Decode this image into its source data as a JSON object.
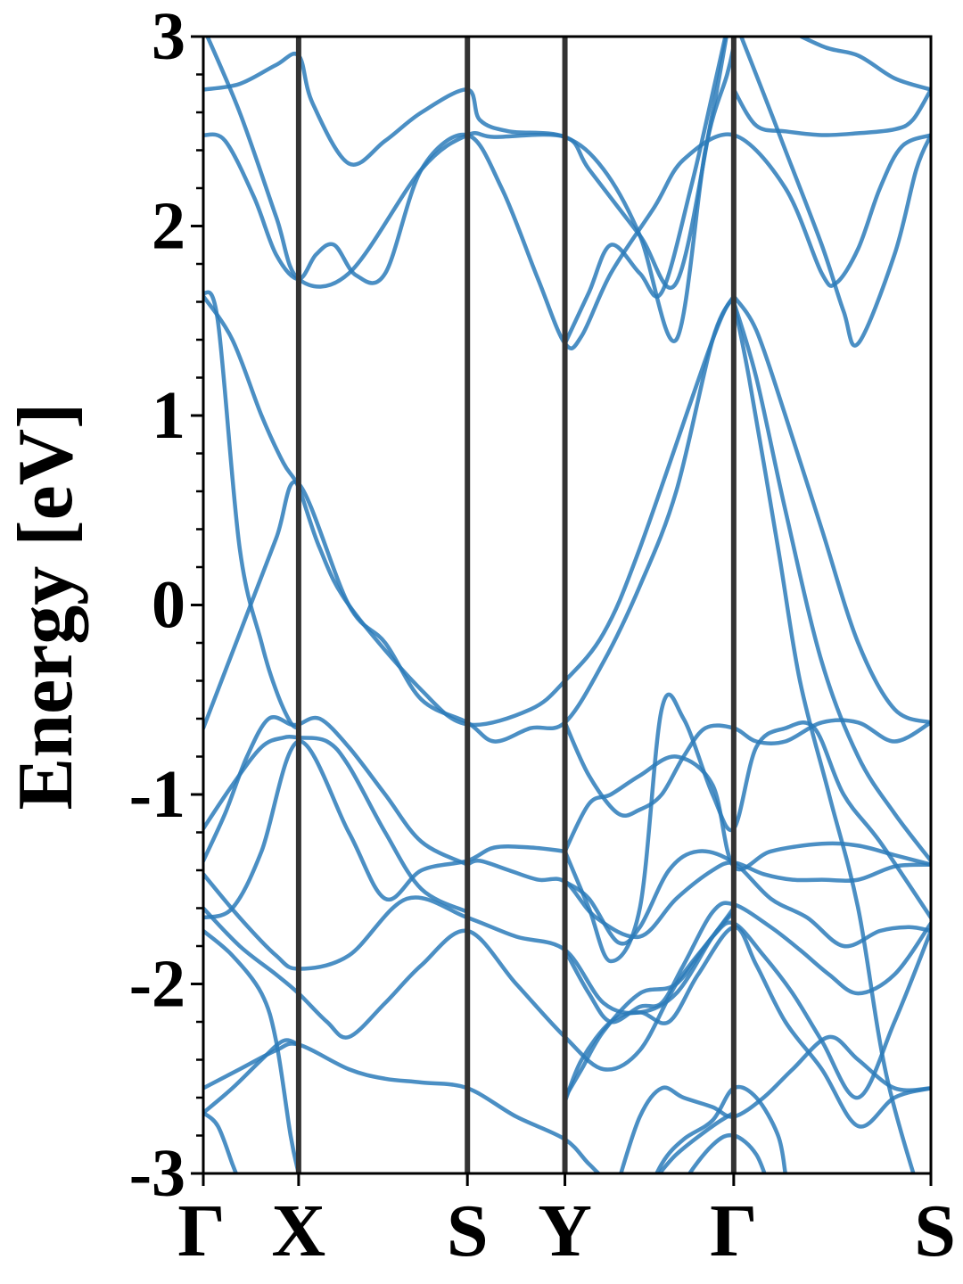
{
  "chart_data": {
    "type": "line",
    "title": "",
    "ylabel": "Energy [eV]",
    "xlabel": "",
    "ylim": [
      -3,
      3
    ],
    "yticks": [
      {
        "value": 3,
        "label": "3"
      },
      {
        "value": 2,
        "label": "2"
      },
      {
        "value": 1,
        "label": "1"
      },
      {
        "value": 0,
        "label": "0"
      },
      {
        "value": -1,
        "label": "-1"
      },
      {
        "value": -2,
        "label": "-2"
      },
      {
        "value": -3,
        "label": "-3"
      }
    ],
    "k_path": [
      {
        "label": "Γ",
        "k": 0.0
      },
      {
        "label": "X",
        "k": 0.131
      },
      {
        "label": "S",
        "k": 0.363
      },
      {
        "label": "Y",
        "k": 0.497
      },
      {
        "label": "Γ",
        "k": 0.729
      },
      {
        "label": "S",
        "k": 1.0
      }
    ],
    "xlim": [
      0,
      1
    ],
    "grid": false,
    "legend": "none",
    "colors": {
      "bands": "#2b7bba",
      "k_lines": "#333333",
      "axes": "#000000"
    },
    "series": [
      {
        "x": [
          0,
          0.05,
          0.1,
          0.131,
          0.2,
          0.3,
          0.363,
          0.4,
          0.497,
          0.53,
          0.6,
          0.65,
          0.7,
          0.729,
          0.74,
          0.755
        ],
        "values": [
          3.05,
          2.6,
          2.05,
          1.72,
          1.75,
          2.3,
          2.48,
          2.47,
          2.47,
          2.3,
          1.95,
          1.7,
          2.6,
          3.2,
          3.2,
          3.2
        ]
      },
      {
        "x": [
          0,
          0.05,
          0.1,
          0.131,
          0.15,
          0.2,
          0.25,
          0.3,
          0.363,
          0.38,
          0.42,
          0.497,
          0.55,
          0.6,
          0.65,
          0.69,
          0.72,
          0.729
        ],
        "values": [
          2.72,
          2.75,
          2.85,
          2.9,
          2.65,
          2.33,
          2.45,
          2.6,
          2.72,
          2.56,
          2.5,
          2.47,
          2.3,
          1.95,
          1.4,
          2.4,
          2.8,
          2.95
        ]
      },
      {
        "x": [
          0,
          0.03,
          0.07,
          0.1,
          0.131,
          0.155,
          0.18,
          0.21,
          0.25,
          0.3,
          0.363,
          0.41,
          0.46,
          0.497,
          0.52,
          0.56,
          0.62,
          0.66,
          0.729,
          0.8,
          0.85,
          0.87,
          0.9,
          0.93,
          0.96,
          1.0
        ],
        "values": [
          2.48,
          2.45,
          2.15,
          1.85,
          1.72,
          1.85,
          1.9,
          1.74,
          1.75,
          2.3,
          2.48,
          2.2,
          1.72,
          1.38,
          1.42,
          1.75,
          2.1,
          2.35,
          2.48,
          2.2,
          1.75,
          1.7,
          1.88,
          2.2,
          2.42,
          2.48
        ]
      },
      {
        "x": [
          0.729,
          0.76,
          0.8,
          0.85,
          0.9,
          0.95,
          0.975,
          1.0
        ],
        "values": [
          2.72,
          2.53,
          2.5,
          2.48,
          2.49,
          2.51,
          2.56,
          2.72
        ]
      },
      {
        "x": [
          0.729,
          0.77,
          0.8,
          0.85,
          0.88,
          0.9,
          0.95,
          0.98,
          1.0
        ],
        "values": [
          3.1,
          2.7,
          2.4,
          1.9,
          1.55,
          1.38,
          1.85,
          2.3,
          2.48
        ]
      },
      {
        "x": [
          0.75,
          0.78,
          0.85,
          0.9,
          0.95,
          1.0
        ],
        "values": [
          3.3,
          3.1,
          2.95,
          2.9,
          2.78,
          2.72
        ]
      },
      {
        "x": [
          0.497,
          0.53,
          0.56,
          0.6,
          0.63,
          0.67,
          0.7,
          0.729
        ],
        "values": [
          1.38,
          1.65,
          1.9,
          1.75,
          1.65,
          2.2,
          2.7,
          3.2
        ]
      },
      {
        "x": [
          0,
          0.05,
          0.1,
          0.131,
          0.2,
          0.25,
          0.3,
          0.363,
          0.4,
          0.45,
          0.497,
          0.55,
          0.6,
          0.65,
          0.7,
          0.729
        ],
        "values": [
          -0.65,
          -0.15,
          0.35,
          0.64,
          0.0,
          -0.2,
          -0.5,
          -0.62,
          -0.72,
          -0.65,
          -0.62,
          -0.3,
          0.1,
          0.6,
          1.4,
          1.63
        ]
      },
      {
        "x": [
          0,
          0.02,
          0.05,
          0.08,
          0.1,
          0.12,
          0.131
        ],
        "values": [
          1.65,
          1.5,
          0.3,
          -0.2,
          -0.45,
          -0.62,
          -0.65
        ]
      },
      {
        "x": [
          0,
          0.04,
          0.08,
          0.11,
          0.131,
          0.16,
          0.2,
          0.3,
          0.363,
          0.45,
          0.497,
          0.55,
          0.6,
          0.7,
          0.729
        ],
        "values": [
          1.63,
          1.4,
          1.0,
          0.75,
          0.62,
          0.3,
          0.0,
          -0.45,
          -0.63,
          -0.55,
          -0.4,
          -0.15,
          0.3,
          1.4,
          1.63
        ]
      },
      {
        "x": [
          0.729,
          0.76,
          0.8,
          0.85,
          0.9,
          0.95,
          1.0
        ],
        "values": [
          1.6,
          1.2,
          0.5,
          -0.3,
          -0.8,
          -1.1,
          -1.35
        ]
      },
      {
        "x": [
          0.729,
          0.76,
          0.8,
          0.85,
          0.9,
          0.95,
          1.0
        ],
        "values": [
          1.63,
          1.45,
          1.0,
          0.4,
          -0.2,
          -0.55,
          -0.62
        ]
      },
      {
        "x": [
          0.729,
          0.75,
          0.79,
          0.82,
          0.86,
          0.9,
          0.94,
          1.0
        ],
        "values": [
          1.6,
          1.2,
          0.3,
          -0.4,
          -1.0,
          -1.6,
          -2.5,
          -3.3
        ]
      },
      {
        "x": [
          0,
          0.03,
          0.06,
          0.09,
          0.12,
          0.131,
          0.16,
          0.2,
          0.25,
          0.3,
          0.363
        ],
        "values": [
          -1.35,
          -1.1,
          -0.8,
          -0.6,
          -0.63,
          -0.63,
          -0.6,
          -0.75,
          -1.0,
          -1.25,
          -1.37
        ]
      },
      {
        "x": [
          0,
          0.04,
          0.08,
          0.11,
          0.131,
          0.17,
          0.2,
          0.25,
          0.3,
          0.363
        ],
        "values": [
          -1.18,
          -0.95,
          -0.75,
          -0.7,
          -0.7,
          -0.72,
          -0.85,
          -1.2,
          -1.5,
          -1.62
        ]
      },
      {
        "x": [
          0,
          0.04,
          0.08,
          0.131,
          0.2,
          0.25,
          0.3,
          0.363,
          0.4,
          0.45,
          0.497
        ],
        "values": [
          -1.65,
          -1.6,
          -1.3,
          -0.72,
          -1.2,
          -1.55,
          -1.4,
          -1.35,
          -1.28,
          -1.28,
          -1.3
        ]
      },
      {
        "x": [
          0,
          0.05,
          0.1,
          0.131,
          0.2,
          0.28,
          0.363,
          0.43,
          0.497,
          0.55,
          0.6,
          0.65,
          0.7,
          0.729
        ],
        "values": [
          -1.42,
          -1.65,
          -1.85,
          -1.92,
          -1.85,
          -1.55,
          -1.65,
          -1.75,
          -1.82,
          -2.1,
          -2.15,
          -2.05,
          -1.75,
          -1.62
        ]
      },
      {
        "x": [
          0,
          0.05,
          0.1,
          0.131,
          0.17,
          0.2,
          0.25,
          0.3,
          0.363,
          0.43,
          0.497,
          0.55,
          0.6,
          0.65,
          0.7,
          0.729
        ],
        "values": [
          -1.6,
          -1.8,
          -1.95,
          -2.05,
          -2.2,
          -2.28,
          -2.1,
          -1.9,
          -1.72,
          -2.0,
          -2.28,
          -2.45,
          -2.35,
          -2.0,
          -1.75,
          -1.6
        ]
      },
      {
        "x": [
          0,
          0.05,
          0.1,
          0.131,
          0.2,
          0.25,
          0.3,
          0.363,
          0.43,
          0.497,
          0.53,
          0.56,
          0.6,
          0.65,
          0.7,
          0.729
        ],
        "values": [
          -2.55,
          -2.45,
          -2.35,
          -2.32,
          -2.45,
          -2.5,
          -2.52,
          -2.55,
          -2.7,
          -2.82,
          -2.95,
          -3.05,
          -3.1,
          -2.9,
          -2.75,
          -2.68
        ]
      },
      {
        "x": [
          0,
          0.04,
          0.08,
          0.11,
          0.131
        ],
        "values": [
          -2.68,
          -2.55,
          -2.4,
          -2.3,
          -2.32
        ]
      },
      {
        "x": [
          0,
          0.04,
          0.08,
          0.1,
          0.12,
          0.131
        ],
        "values": [
          -1.72,
          -1.85,
          -2.05,
          -2.3,
          -2.8,
          -3.0
        ]
      },
      {
        "x": [
          0,
          0.02,
          0.04,
          0.05
        ],
        "values": [
          -2.68,
          -2.75,
          -2.95,
          -3.05
        ]
      },
      {
        "x": [
          0.363,
          0.38,
          0.42,
          0.46,
          0.497,
          0.54,
          0.6,
          0.65,
          0.7,
          0.729,
          0.77,
          0.81,
          0.85,
          0.9,
          0.95,
          1.0
        ],
        "values": [
          -1.37,
          -1.35,
          -1.4,
          -1.45,
          -1.46,
          -1.65,
          -1.75,
          -1.55,
          -1.4,
          -1.36,
          -1.42,
          -1.45,
          -1.45,
          -1.45,
          -1.38,
          -1.37
        ]
      },
      {
        "x": [
          0.497,
          0.53,
          0.56,
          0.6,
          0.65,
          0.7,
          0.729,
          0.78,
          0.85,
          0.9,
          0.95,
          1.0
        ],
        "values": [
          -1.3,
          -1.05,
          -1.0,
          -0.9,
          -0.8,
          -0.95,
          -1.38,
          -1.3,
          -1.26,
          -1.27,
          -1.32,
          -1.37
        ]
      },
      {
        "x": [
          0.497,
          0.53,
          0.57,
          0.6,
          0.63,
          0.66,
          0.69,
          0.729,
          0.76,
          0.8,
          0.85,
          0.9,
          0.95,
          1.0
        ],
        "values": [
          -0.62,
          -0.9,
          -1.1,
          -1.08,
          -1.0,
          -0.8,
          -0.65,
          -0.65,
          -0.72,
          -0.72,
          -0.62,
          -0.62,
          -0.72,
          -0.62
        ]
      },
      {
        "x": [
          0.497,
          0.53,
          0.56,
          0.6,
          0.63,
          0.66,
          0.7,
          0.729,
          0.76,
          0.8,
          0.84,
          0.88,
          0.93,
          1.0
        ],
        "values": [
          -1.3,
          -1.6,
          -1.88,
          -1.6,
          -0.55,
          -0.6,
          -1.0,
          -1.18,
          -0.75,
          -0.65,
          -0.65,
          -1.0,
          -1.25,
          -1.65
        ]
      },
      {
        "x": [
          0.497,
          0.53,
          0.57,
          0.6,
          0.64,
          0.68,
          0.729,
          0.78,
          0.83,
          0.88,
          0.93,
          0.97,
          1.0
        ],
        "values": [
          -1.46,
          -1.55,
          -1.78,
          -1.7,
          -1.4,
          -1.3,
          -1.36,
          -1.55,
          -1.65,
          -1.8,
          -1.72,
          -1.7,
          -1.72
        ]
      },
      {
        "x": [
          0.497,
          0.53,
          0.56,
          0.6,
          0.63,
          0.66,
          0.7,
          0.729,
          0.78,
          0.82,
          0.86,
          0.9,
          0.95,
          1.0
        ],
        "values": [
          -1.82,
          -2.05,
          -2.2,
          -2.12,
          -2.1,
          -1.9,
          -1.62,
          -1.58,
          -1.7,
          -1.82,
          -1.95,
          -2.05,
          -1.95,
          -1.68
        ]
      },
      {
        "x": [
          0.497,
          0.52,
          0.55,
          0.6,
          0.65,
          0.7,
          0.729,
          0.77,
          0.81,
          0.85,
          0.9,
          0.95,
          1.0
        ],
        "values": [
          -2.6,
          -2.45,
          -2.25,
          -2.05,
          -2.0,
          -1.75,
          -1.68,
          -1.85,
          -2.05,
          -2.3,
          -2.6,
          -2.2,
          -1.72
        ]
      },
      {
        "x": [
          0.497,
          0.52,
          0.56,
          0.6,
          0.64,
          0.68,
          0.729,
          0.76,
          0.8,
          0.85,
          0.9,
          0.95,
          1.0
        ],
        "values": [
          -2.62,
          -2.4,
          -2.2,
          -2.15,
          -2.2,
          -1.95,
          -1.7,
          -1.9,
          -2.2,
          -2.45,
          -2.75,
          -2.6,
          -2.55
        ]
      },
      {
        "x": [
          0.57,
          0.6,
          0.63,
          0.66,
          0.7,
          0.729,
          0.77,
          0.81,
          0.86,
          0.9,
          0.95,
          1.0
        ],
        "values": [
          -3.05,
          -2.7,
          -2.55,
          -2.6,
          -2.65,
          -2.7,
          -2.6,
          -2.45,
          -2.28,
          -2.4,
          -2.55,
          -2.55
        ]
      },
      {
        "x": [
          0.6,
          0.63,
          0.66,
          0.7,
          0.729,
          0.76,
          0.79,
          0.8
        ],
        "values": [
          -3.2,
          -2.95,
          -2.82,
          -2.72,
          -2.55,
          -2.6,
          -2.8,
          -3.0
        ]
      },
      {
        "x": [
          0.63,
          0.66,
          0.7,
          0.729,
          0.76,
          0.78
        ],
        "values": [
          -3.3,
          -3.05,
          -2.85,
          -2.8,
          -2.9,
          -3.1
        ]
      }
    ]
  }
}
